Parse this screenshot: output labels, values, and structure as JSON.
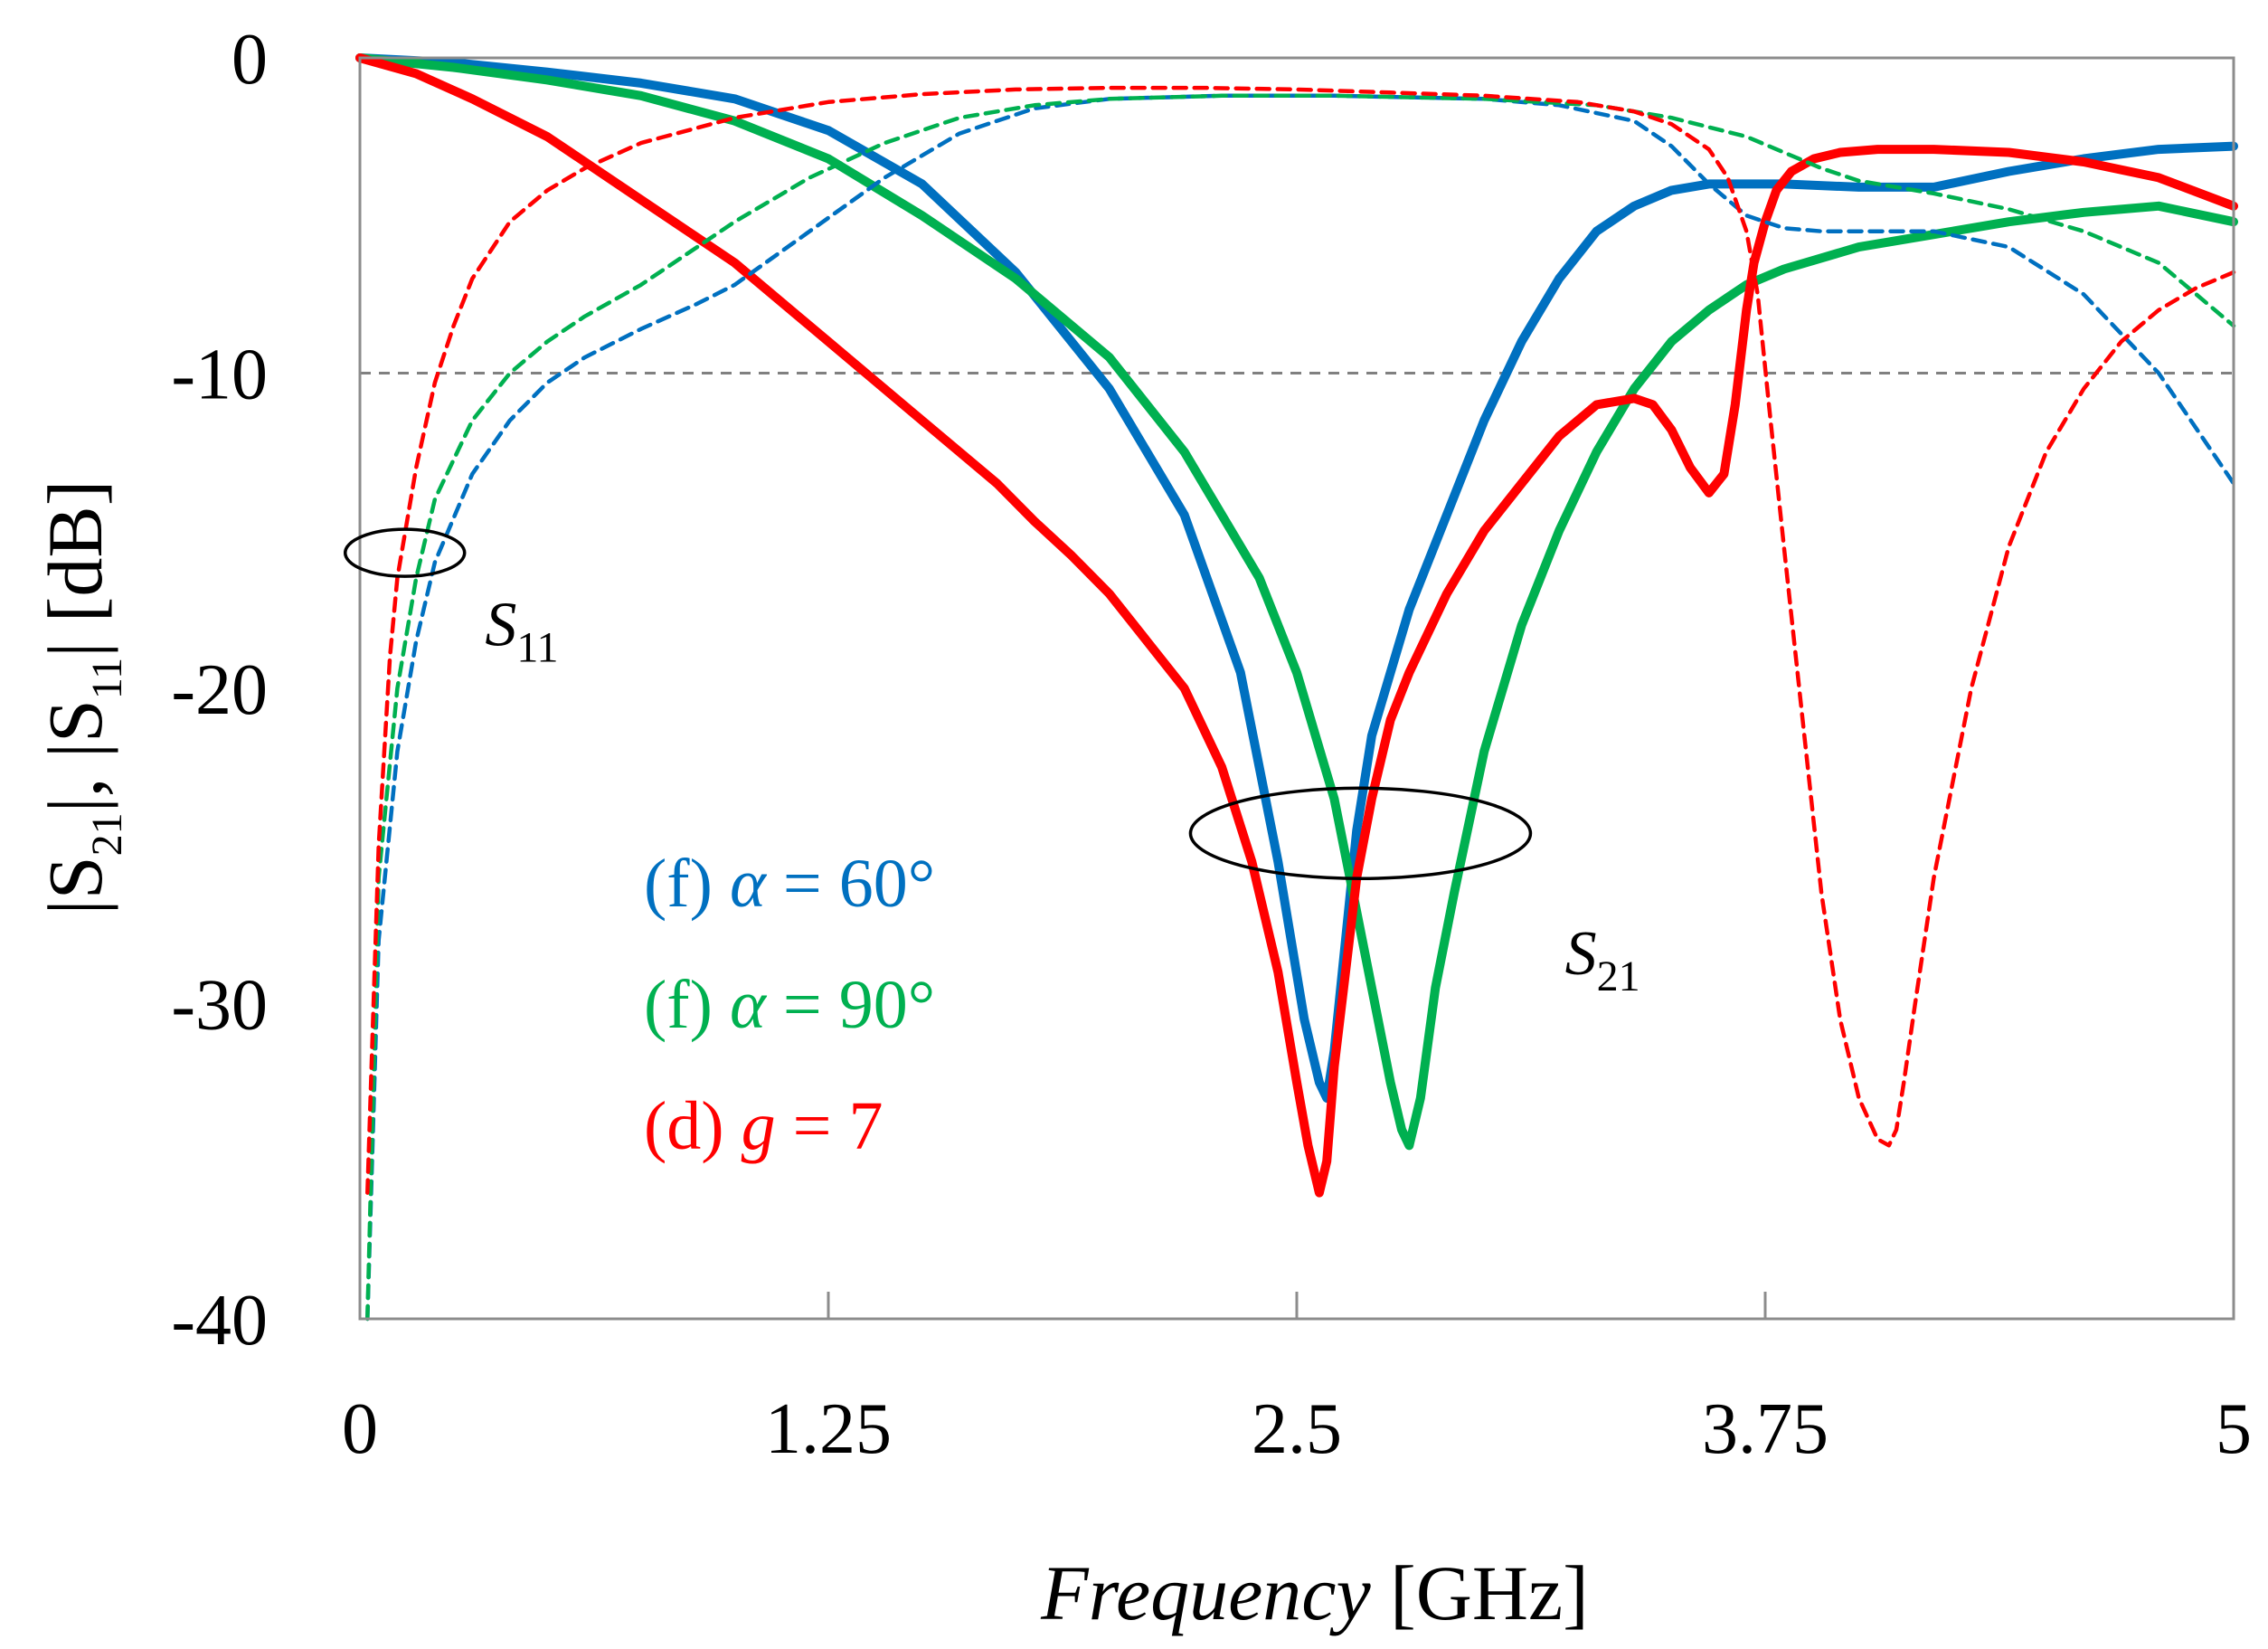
{
  "chart_data": {
    "type": "line",
    "title": "",
    "xlabel": {
      "italic": "Frequency",
      "unit": " [GHz]"
    },
    "ylabel": {
      "parts": [
        {
          "t": "|S",
          "sub": false
        },
        {
          "t": "21",
          "sub": true
        },
        {
          "t": "|, |S",
          "sub": false
        },
        {
          "t": "11",
          "sub": true
        },
        {
          "t": "| [dB]",
          "sub": false
        }
      ]
    },
    "xlim": [
      0,
      5
    ],
    "ylim": [
      -40,
      0
    ],
    "xticks": [
      0,
      1.25,
      2.5,
      3.75,
      5
    ],
    "xtick_labels": [
      "0",
      "1.25",
      "2.5",
      "3.75",
      "5"
    ],
    "yticks": [
      0,
      -10,
      -20,
      -30,
      -40
    ],
    "ytick_labels": [
      "0",
      "-10",
      "-20",
      "-30",
      "-40"
    ],
    "reference_line": {
      "y": -10,
      "style": "dashed",
      "color": "#808080"
    },
    "colors": {
      "blue": "#0070C0",
      "green": "#00B050",
      "red": "#FF0000"
    },
    "legend": [
      {
        "prefix": "(f) ",
        "sym": "α",
        "rest": " = 60°",
        "color": "#0070C0"
      },
      {
        "prefix": "(f) ",
        "sym": "α",
        "rest": " = 90°",
        "color": "#00B050"
      },
      {
        "prefix": "(d) ",
        "sym": "g",
        "rest": " = 7",
        "color": "#FF0000"
      }
    ],
    "annotations": [
      {
        "label": "S",
        "sub": "11",
        "cx": 0.12,
        "cy": -15.7,
        "anchor_x": 0.3,
        "anchor_y": -17.6
      },
      {
        "label": "S",
        "sub": "21",
        "cx": 2.67,
        "cy": -24.6,
        "anchor_x": 3.1,
        "anchor_y": -27.8
      }
    ],
    "series": [
      {
        "name": "(f) α = 60° |S21|",
        "color": "#0070C0",
        "style": "solid",
        "x": [
          0,
          0.25,
          0.5,
          0.75,
          1.0,
          1.25,
          1.5,
          1.75,
          2.0,
          2.2,
          2.35,
          2.45,
          2.52,
          2.56,
          2.58,
          2.6,
          2.63,
          2.66,
          2.7,
          2.8,
          2.9,
          3.0,
          3.1,
          3.2,
          3.3,
          3.4,
          3.5,
          3.6,
          3.7,
          3.8,
          4.0,
          4.2,
          4.4,
          4.6,
          4.8,
          5.0
        ],
        "y": [
          0,
          -0.15,
          -0.45,
          -0.8,
          -1.3,
          -2.3,
          -4.0,
          -6.8,
          -10.5,
          -14.5,
          -19.5,
          -25.5,
          -30.5,
          -32.5,
          -33.0,
          -31.5,
          -28.0,
          -24.5,
          -21.5,
          -17.5,
          -14.5,
          -11.5,
          -9.0,
          -7.0,
          -5.5,
          -4.7,
          -4.2,
          -4.0,
          -4.0,
          -4.0,
          -4.1,
          -4.1,
          -3.6,
          -3.2,
          -2.9,
          -2.8
        ]
      },
      {
        "name": "(f) α = 90° |S21|",
        "color": "#00B050",
        "style": "solid",
        "x": [
          0,
          0.25,
          0.5,
          0.75,
          1.0,
          1.25,
          1.5,
          1.75,
          2.0,
          2.2,
          2.4,
          2.5,
          2.6,
          2.65,
          2.7,
          2.75,
          2.78,
          2.8,
          2.83,
          2.87,
          2.92,
          3.0,
          3.1,
          3.2,
          3.3,
          3.4,
          3.5,
          3.6,
          3.7,
          3.8,
          4.0,
          4.2,
          4.4,
          4.6,
          4.8,
          5.0
        ],
        "y": [
          0,
          -0.3,
          -0.7,
          -1.2,
          -2.0,
          -3.2,
          -5.0,
          -7.0,
          -9.5,
          -12.5,
          -16.5,
          -19.5,
          -23.5,
          -26.5,
          -29.5,
          -32.5,
          -34.0,
          -34.5,
          -33.0,
          -29.5,
          -26.5,
          -22.0,
          -18.0,
          -15.0,
          -12.5,
          -10.5,
          -9.0,
          -8.0,
          -7.2,
          -6.7,
          -6.0,
          -5.6,
          -5.2,
          -4.9,
          -4.7,
          -5.2
        ]
      },
      {
        "name": "(d) g = 7 |S21|",
        "color": "#FF0000",
        "style": "solid",
        "x": [
          0,
          0.15,
          0.3,
          0.5,
          0.75,
          1.0,
          1.25,
          1.5,
          1.7,
          1.8,
          1.9,
          2.0,
          2.1,
          2.2,
          2.3,
          2.38,
          2.45,
          2.5,
          2.53,
          2.56,
          2.58,
          2.6,
          2.63,
          2.66,
          2.7,
          2.75,
          2.8,
          2.9,
          3.0,
          3.1,
          3.2,
          3.3,
          3.4,
          3.45,
          3.5,
          3.55,
          3.6,
          3.64,
          3.67,
          3.7,
          3.72,
          3.75,
          3.78,
          3.82,
          3.88,
          3.95,
          4.05,
          4.2,
          4.4,
          4.6,
          4.8,
          5.0
        ],
        "y": [
          0,
          -0.5,
          -1.3,
          -2.5,
          -4.5,
          -6.5,
          -9.0,
          -11.5,
          -13.5,
          -14.7,
          -15.8,
          -17.0,
          -18.5,
          -20.0,
          -22.5,
          -25.5,
          -29.0,
          -32.5,
          -34.5,
          -36.0,
          -35.0,
          -32.0,
          -29.0,
          -26.0,
          -23.5,
          -21.0,
          -19.5,
          -17.0,
          -15.0,
          -13.5,
          -12.0,
          -11.0,
          -10.8,
          -11.0,
          -11.8,
          -13.0,
          -13.8,
          -13.2,
          -11.0,
          -8.0,
          -6.5,
          -5.2,
          -4.2,
          -3.6,
          -3.2,
          -3.0,
          -2.9,
          -2.9,
          -3.0,
          -3.3,
          -3.8,
          -4.7
        ]
      },
      {
        "name": "(f) α = 60° |S11|",
        "color": "#0070C0",
        "style": "dashed",
        "x": [
          0.02,
          0.05,
          0.1,
          0.15,
          0.2,
          0.3,
          0.4,
          0.5,
          0.6,
          0.75,
          0.9,
          1.0,
          1.2,
          1.4,
          1.6,
          1.8,
          2.0,
          2.3,
          2.6,
          3.0,
          3.2,
          3.4,
          3.5,
          3.6,
          3.7,
          3.8,
          3.9,
          4.0,
          4.2,
          4.4,
          4.6,
          4.8,
          5.0
        ],
        "y": [
          -40.0,
          -28.0,
          -22.0,
          -18.5,
          -16.0,
          -13.2,
          -11.5,
          -10.3,
          -9.5,
          -8.6,
          -7.8,
          -7.2,
          -5.5,
          -3.8,
          -2.4,
          -1.6,
          -1.3,
          -1.2,
          -1.2,
          -1.3,
          -1.5,
          -2.0,
          -2.8,
          -4.0,
          -5.0,
          -5.4,
          -5.5,
          -5.5,
          -5.5,
          -6.0,
          -7.5,
          -10.0,
          -13.5
        ]
      },
      {
        "name": "(f) α = 90° |S11|",
        "color": "#00B050",
        "style": "dashed",
        "x": [
          0.02,
          0.05,
          0.1,
          0.15,
          0.2,
          0.3,
          0.4,
          0.5,
          0.6,
          0.75,
          0.9,
          1.0,
          1.2,
          1.4,
          1.6,
          1.8,
          2.0,
          2.3,
          2.6,
          3.0,
          3.3,
          3.5,
          3.7,
          3.8,
          3.9,
          4.0,
          4.2,
          4.4,
          4.6,
          4.8,
          5.0
        ],
        "y": [
          -40.0,
          -26.0,
          -20.0,
          -16.5,
          -14.0,
          -11.5,
          -10.0,
          -9.0,
          -8.2,
          -7.2,
          -6.0,
          -5.2,
          -3.8,
          -2.7,
          -1.9,
          -1.5,
          -1.3,
          -1.2,
          -1.2,
          -1.3,
          -1.5,
          -1.9,
          -2.5,
          -3.0,
          -3.5,
          -3.9,
          -4.3,
          -4.8,
          -5.5,
          -6.5,
          -8.5
        ]
      },
      {
        "name": "(d) g = 7 |S11|",
        "color": "#FF0000",
        "style": "dashed",
        "x": [
          0.02,
          0.05,
          0.08,
          0.1,
          0.15,
          0.2,
          0.25,
          0.3,
          0.4,
          0.5,
          0.6,
          0.75,
          1.0,
          1.25,
          1.5,
          1.75,
          2.0,
          2.25,
          2.5,
          2.75,
          3.0,
          3.25,
          3.4,
          3.5,
          3.6,
          3.65,
          3.7,
          3.73,
          3.76,
          3.8,
          3.85,
          3.9,
          3.95,
          4.0,
          4.05,
          4.08,
          4.1,
          4.12,
          4.15,
          4.2,
          4.3,
          4.4,
          4.5,
          4.6,
          4.7,
          4.8,
          4.9,
          5.0
        ],
        "y": [
          -36.0,
          -25.0,
          -19.0,
          -16.5,
          -13.0,
          -10.3,
          -8.5,
          -7.0,
          -5.2,
          -4.2,
          -3.5,
          -2.7,
          -1.9,
          -1.4,
          -1.15,
          -1.0,
          -0.95,
          -0.95,
          -1.0,
          -1.1,
          -1.2,
          -1.4,
          -1.7,
          -2.1,
          -2.9,
          -3.8,
          -5.5,
          -7.5,
          -11.0,
          -15.5,
          -21.0,
          -26.5,
          -30.5,
          -33.0,
          -34.3,
          -34.5,
          -34.0,
          -32.5,
          -30.0,
          -26.0,
          -20.0,
          -15.5,
          -12.5,
          -10.5,
          -9.0,
          -8.0,
          -7.3,
          -6.8
        ]
      }
    ]
  }
}
